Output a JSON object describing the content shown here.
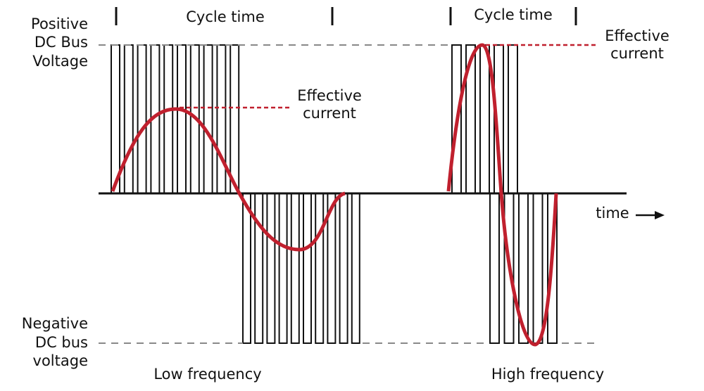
{
  "left_axis": {
    "positive": [
      "Positive",
      "DC Bus",
      "Voltage"
    ],
    "negative": [
      "Negative",
      "DC bus",
      "voltage"
    ]
  },
  "low_frequency": {
    "cycle_label": "Cycle time",
    "current_label": [
      "Effective",
      "current"
    ],
    "caption": "Low frequency"
  },
  "high_frequency": {
    "cycle_label": "Cycle time",
    "current_label": [
      "Effective",
      "current"
    ],
    "caption": "High frequency"
  },
  "time_label": "time"
}
